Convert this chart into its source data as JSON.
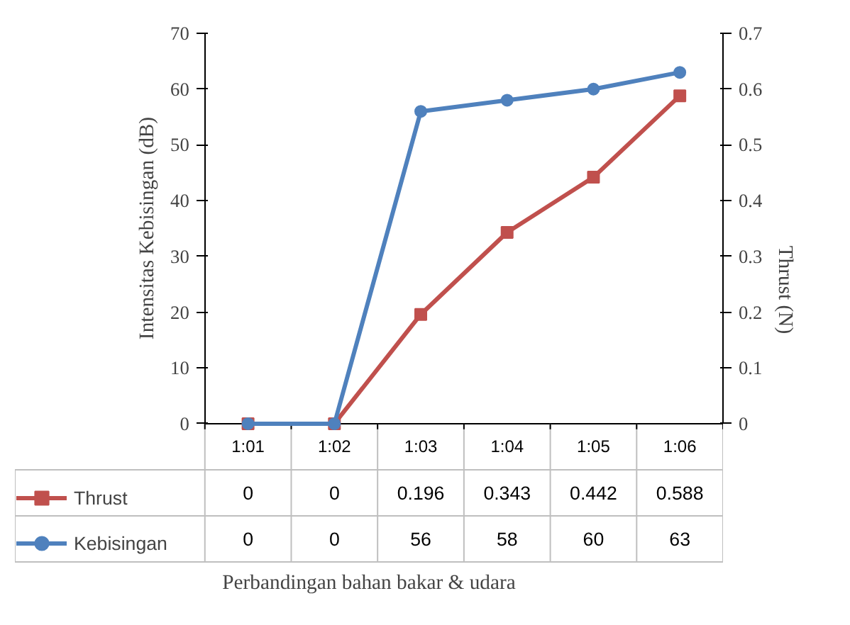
{
  "chart_data": {
    "type": "line",
    "annotations": [
      "Perbandingan bahan bakar & udara"
    ],
    "ylabel": "Intensitas Kebisingan (dB)",
    "y2label": "Thrust (N)",
    "categories": [
      "1:01",
      "1:02",
      "1:03",
      "1:04",
      "1:05",
      "1:06"
    ],
    "series": [
      {
        "name": "Thrust",
        "color": "#c0504d",
        "marker": "square",
        "axis": "y2",
        "values": [
          0,
          0,
          0.196,
          0.343,
          0.442,
          0.588
        ]
      },
      {
        "name": "Kebisingan",
        "color": "#4f81bd",
        "marker": "circle",
        "values": [
          0,
          0,
          56,
          58,
          60,
          63
        ]
      }
    ],
    "ylim": [
      0,
      70
    ],
    "yticks": [
      0,
      10,
      20,
      30,
      40,
      50,
      60,
      70
    ],
    "y2lim": [
      0,
      0.7
    ],
    "y2ticks": [
      0,
      0.1,
      0.2,
      0.3,
      0.4,
      0.5,
      0.6,
      0.7
    ],
    "grid": false,
    "legend": "bottom",
    "data_labels": true,
    "line_style": "solid"
  }
}
